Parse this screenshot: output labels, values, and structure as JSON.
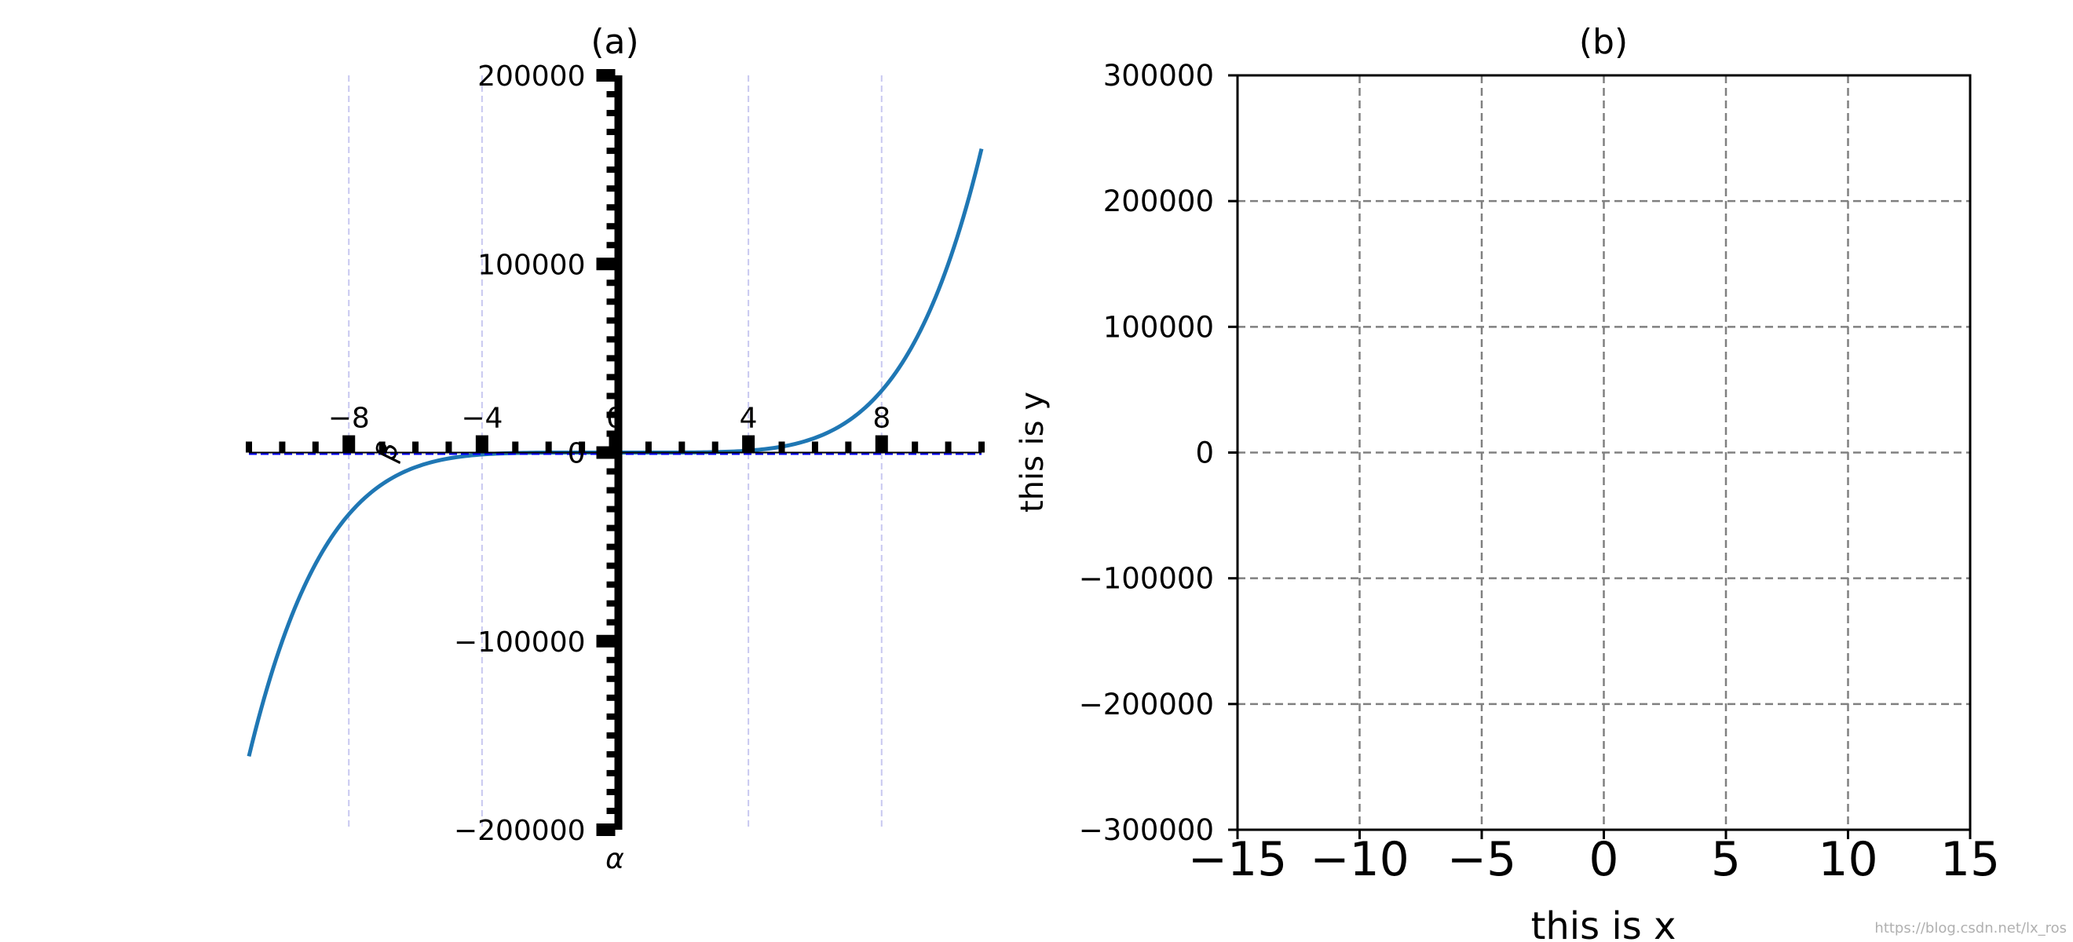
{
  "chart_data": [
    {
      "type": "line",
      "title": "(a)",
      "xlabel": "",
      "ylabel": "",
      "xlim": [
        -11,
        11
      ],
      "ylim": [
        -200000,
        200000
      ],
      "xticks": [
        -8,
        -4,
        0,
        4,
        8
      ],
      "yticks": [
        -200000,
        -100000,
        0,
        100000,
        200000
      ],
      "xtick_labels": [
        "−8",
        "−4",
        "0",
        "4",
        "8"
      ],
      "ytick_labels": [
        "−200000",
        "−100000",
        "0",
        "100000",
        "200000"
      ],
      "spine_labels": {
        "x": "β",
        "y": "α"
      },
      "grid": {
        "x": true,
        "y": false,
        "color": "#c8c8f0",
        "style": "dashed"
      },
      "series": [
        {
          "function": "y = x^5",
          "x_range": [
            -11,
            11
          ],
          "color": "#1f77b4",
          "points": [
            [
              -11,
              -161051
            ],
            [
              -9,
              -59049
            ],
            [
              -7,
              -16807
            ],
            [
              -5,
              -3125
            ],
            [
              0,
              0
            ],
            [
              5,
              3125
            ],
            [
              7,
              16807
            ],
            [
              9,
              59049
            ],
            [
              11,
              161051
            ]
          ]
        }
      ],
      "reference_line": {
        "y": 0,
        "color": "#0000ff",
        "style": "dashed"
      }
    },
    {
      "type": "line",
      "title": "(b)",
      "xlabel": "this is x",
      "ylabel": "this is y",
      "xlim": [
        -15,
        15
      ],
      "ylim": [
        -300000,
        300000
      ],
      "xticks": [
        -15,
        -10,
        -5,
        0,
        5,
        10,
        15
      ],
      "yticks": [
        -300000,
        -200000,
        -100000,
        0,
        100000,
        200000,
        300000
      ],
      "xtick_labels": [
        "−15",
        "−10",
        "−5",
        "0",
        "5",
        "10",
        "15"
      ],
      "ytick_labels": [
        "−300000",
        "−200000",
        "−100000",
        "0",
        "100000",
        "200000",
        "300000"
      ],
      "grid": {
        "x": true,
        "y": true,
        "color": "#808080",
        "style": "dashed"
      },
      "series": []
    }
  ],
  "watermark": "https://blog.csdn.net/lx_ros"
}
